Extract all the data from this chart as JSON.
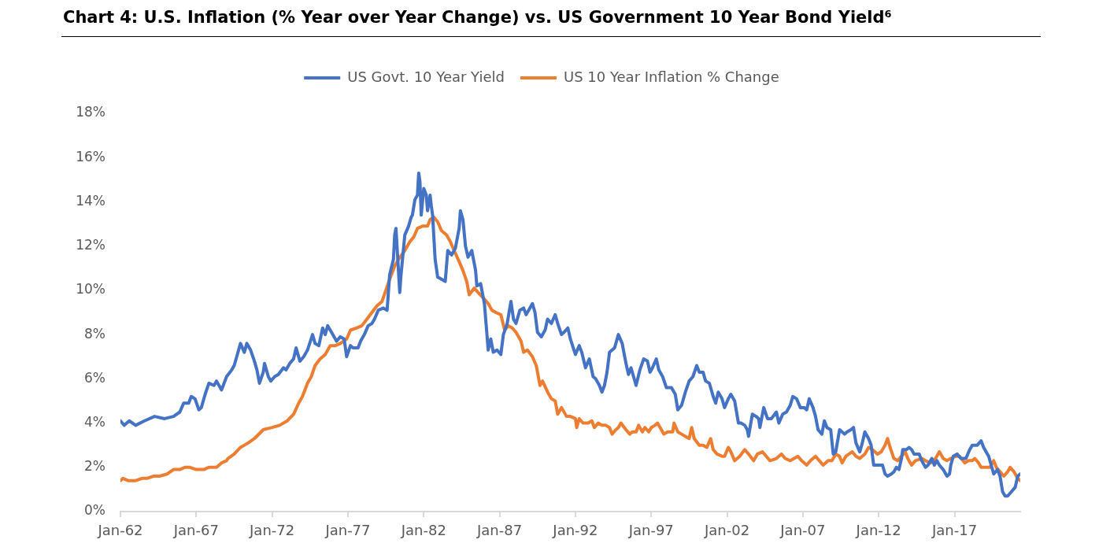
{
  "chart_data": {
    "type": "line",
    "title": "Chart 4: U.S. Inflation (% Year over Year Change) vs. US Government 10 Year Bond Yield⁶",
    "series": [
      {
        "name": "US Govt. 10 Year Yield",
        "color": "#4472c4",
        "x": [
          "1962-01",
          "1962-04",
          "1962-08",
          "1963-01",
          "1963-08",
          "1964-04",
          "1964-12",
          "1965-07",
          "1965-12",
          "1966-03",
          "1966-07",
          "1966-09",
          "1966-12",
          "1967-03",
          "1967-05",
          "1967-08",
          "1967-11",
          "1968-03",
          "1968-05",
          "1968-09",
          "1969-01",
          "1969-05",
          "1969-07",
          "1969-09",
          "1969-12",
          "1970-03",
          "1970-05",
          "1970-08",
          "1970-11",
          "1971-01",
          "1971-03",
          "1971-06",
          "1971-07",
          "1971-10",
          "1971-12",
          "1972-03",
          "1972-06",
          "1972-10",
          "1972-12",
          "1973-03",
          "1973-06",
          "1973-08",
          "1973-11",
          "1974-02",
          "1974-05",
          "1974-09",
          "1974-11",
          "1975-02",
          "1975-05",
          "1975-07",
          "1975-09",
          "1976-01",
          "1976-04",
          "1976-07",
          "1976-10",
          "1976-12",
          "1977-03",
          "1977-05",
          "1977-09",
          "1977-11",
          "1978-02",
          "1978-05",
          "1978-08",
          "1978-10",
          "1979-01",
          "1979-05",
          "1979-08",
          "1979-10",
          "1980-01",
          "1980-02",
          "1980-03",
          "1980-06",
          "1980-07",
          "1980-10",
          "1981-01",
          "1981-03",
          "1981-04",
          "1981-06",
          "1981-08",
          "1981-09",
          "1981-10",
          "1981-11",
          "1982-01",
          "1982-03",
          "1982-04",
          "1982-06",
          "1982-07",
          "1982-08",
          "1982-10",
          "1982-12",
          "1983-03",
          "1983-06",
          "1983-08",
          "1983-11",
          "1984-02",
          "1984-05",
          "1984-06",
          "1984-08",
          "1984-10",
          "1984-12",
          "1985-03",
          "1985-06",
          "1985-07",
          "1985-10",
          "1986-01",
          "1986-04",
          "1986-06",
          "1986-08",
          "1986-11",
          "1987-02",
          "1987-04",
          "1987-07",
          "1987-10",
          "1987-12",
          "1988-02",
          "1988-05",
          "1988-08",
          "1988-10",
          "1988-12",
          "1989-03",
          "1989-05",
          "1989-07",
          "1989-10",
          "1990-01",
          "1990-03",
          "1990-06",
          "1990-09",
          "1990-11",
          "1991-02",
          "1991-04",
          "1991-07",
          "1991-09",
          "1992-01",
          "1992-04",
          "1992-06",
          "1992-09",
          "1992-12",
          "1993-03",
          "1993-05",
          "1993-08",
          "1993-10",
          "1993-12",
          "1994-02",
          "1994-04",
          "1994-08",
          "1994-11",
          "1995-02",
          "1995-05",
          "1995-07",
          "1995-09",
          "1996-01",
          "1996-04",
          "1996-07",
          "1996-10",
          "1996-12",
          "1997-02",
          "1997-05",
          "1997-07",
          "1997-10",
          "1998-01",
          "1998-05",
          "1998-08",
          "1998-10",
          "1999-01",
          "1999-04",
          "1999-07",
          "1999-10",
          "2000-01",
          "2000-03",
          "2000-06",
          "2000-08",
          "2000-11",
          "2001-02",
          "2001-04",
          "2001-06",
          "2001-09",
          "2001-11",
          "2002-02",
          "2002-04",
          "2002-07",
          "2002-10",
          "2002-12",
          "2003-03",
          "2003-05",
          "2003-06",
          "2003-09",
          "2003-12",
          "2004-02",
          "2004-03",
          "2004-06",
          "2004-09",
          "2004-12",
          "2005-04",
          "2005-06",
          "2005-09",
          "2005-12",
          "2006-03",
          "2006-05",
          "2006-08",
          "2006-11",
          "2007-02",
          "2007-04",
          "2007-06",
          "2007-09",
          "2007-11",
          "2008-01",
          "2008-04",
          "2008-06",
          "2008-08",
          "2008-11",
          "2009-01",
          "2009-03",
          "2009-06",
          "2009-10",
          "2009-12",
          "2010-03",
          "2010-05",
          "2010-07",
          "2010-10",
          "2010-12",
          "2011-02",
          "2011-05",
          "2011-07",
          "2011-09",
          "2011-12",
          "2012-02",
          "2012-04",
          "2012-06",
          "2012-08",
          "2012-11",
          "2013-01",
          "2013-03",
          "2013-05",
          "2013-07",
          "2013-08",
          "2013-11",
          "2014-01",
          "2014-03",
          "2014-05",
          "2014-09",
          "2014-11",
          "2015-02",
          "2015-04",
          "2015-07",
          "2015-09",
          "2015-11",
          "2016-01",
          "2016-04",
          "2016-07",
          "2016-09",
          "2016-10",
          "2016-12",
          "2017-03",
          "2017-06",
          "2017-08",
          "2017-10",
          "2018-01",
          "2018-03",
          "2018-05",
          "2018-07",
          "2018-10",
          "2018-12",
          "2019-03",
          "2019-04",
          "2019-06",
          "2019-08",
          "2019-11",
          "2020-01",
          "2020-03",
          "2020-05",
          "2020-07",
          "2020-10",
          "2021-01",
          "2021-03",
          "2021-05"
        ],
        "values": [
          4.1,
          3.9,
          4.1,
          3.9,
          4.1,
          4.3,
          4.2,
          4.3,
          4.5,
          4.9,
          4.9,
          5.2,
          5.1,
          4.6,
          4.7,
          5.3,
          5.8,
          5.7,
          5.9,
          5.5,
          6.1,
          6.4,
          6.6,
          7.0,
          7.6,
          7.2,
          7.6,
          7.3,
          6.8,
          6.4,
          5.8,
          6.3,
          6.7,
          6.1,
          5.9,
          6.1,
          6.2,
          6.5,
          6.4,
          6.7,
          6.9,
          7.4,
          6.8,
          7.0,
          7.3,
          8.0,
          7.6,
          7.5,
          8.3,
          8.0,
          8.4,
          8.0,
          7.7,
          7.9,
          7.8,
          7.0,
          7.5,
          7.4,
          7.4,
          7.7,
          8.0,
          8.4,
          8.5,
          8.7,
          9.1,
          9.2,
          9.1,
          10.7,
          11.4,
          12.5,
          12.8,
          9.9,
          10.7,
          12.5,
          12.9,
          13.3,
          13.4,
          14.1,
          14.3,
          15.3,
          14.9,
          13.4,
          14.6,
          14.3,
          13.6,
          14.3,
          13.8,
          13.4,
          11.4,
          10.6,
          10.5,
          10.4,
          11.8,
          11.6,
          11.9,
          12.8,
          13.6,
          13.2,
          12.0,
          11.5,
          11.8,
          10.9,
          10.2,
          10.3,
          9.4,
          7.3,
          7.8,
          7.2,
          7.3,
          7.1,
          8.0,
          8.5,
          9.5,
          8.7,
          8.5,
          9.1,
          9.2,
          8.9,
          9.1,
          9.4,
          9.0,
          8.1,
          7.9,
          8.2,
          8.7,
          8.5,
          8.9,
          8.5,
          8.0,
          8.1,
          8.3,
          7.8,
          7.1,
          7.5,
          7.2,
          6.5,
          6.9,
          6.1,
          6.0,
          5.7,
          5.4,
          5.7,
          6.3,
          7.2,
          7.4,
          8.0,
          7.6,
          6.7,
          6.2,
          6.5,
          5.7,
          6.4,
          6.9,
          6.8,
          6.3,
          6.5,
          6.9,
          6.4,
          6.1,
          5.6,
          5.6,
          5.3,
          4.6,
          4.8,
          5.4,
          5.9,
          6.1,
          6.6,
          6.3,
          6.3,
          5.9,
          5.8,
          5.2,
          4.9,
          5.4,
          5.1,
          4.7,
          5.1,
          5.3,
          5.0,
          4.0,
          4.0,
          3.9,
          3.7,
          3.4,
          4.4,
          4.3,
          4.2,
          3.8,
          4.7,
          4.2,
          4.2,
          4.5,
          4.0,
          4.4,
          4.5,
          4.8,
          5.2,
          5.1,
          4.7,
          4.7,
          4.6,
          5.1,
          4.7,
          4.3,
          3.7,
          3.5,
          4.1,
          3.8,
          3.7,
          2.6,
          2.7,
          3.7,
          3.5,
          3.6,
          3.7,
          3.8,
          3.1,
          2.7,
          3.1,
          3.6,
          3.3,
          3.0,
          2.1,
          2.1,
          2.1,
          2.1,
          1.7,
          1.6,
          1.7,
          1.8,
          2.0,
          1.9,
          2.4,
          2.8,
          2.8,
          2.9,
          2.8,
          2.6,
          2.6,
          2.3,
          2.0,
          2.1,
          2.4,
          2.1,
          2.3,
          2.1,
          1.9,
          1.6,
          1.7,
          2.1,
          2.5,
          2.6,
          2.4,
          2.4,
          2.4,
          2.8,
          3.0,
          3.0,
          3.0,
          3.2,
          2.9,
          2.6,
          2.5,
          2.1,
          1.7,
          1.9,
          1.6,
          0.9,
          0.7,
          0.7,
          0.9,
          1.1,
          1.6,
          1.7
        ]
      },
      {
        "name": "US 10 Year Inflation % Change",
        "color": "#ed7d31",
        "x": [
          "1962-01",
          "1962-03",
          "1962-07",
          "1963-01",
          "1963-06",
          "1963-10",
          "1964-03",
          "1964-08",
          "1965-02",
          "1965-07",
          "1965-12",
          "1966-04",
          "1966-08",
          "1967-01",
          "1967-07",
          "1967-11",
          "1968-05",
          "1968-09",
          "1969-01",
          "1969-02",
          "1969-07",
          "1969-12",
          "1970-06",
          "1970-11",
          "1971-06",
          "1972-01",
          "1972-07",
          "1973-01",
          "1973-06",
          "1973-10",
          "1974-01",
          "1974-05",
          "1974-08",
          "1974-11",
          "1975-03",
          "1975-07",
          "1975-11",
          "1976-03",
          "1976-07",
          "1976-12",
          "1977-03",
          "1977-08",
          "1977-12",
          "1978-04",
          "1978-08",
          "1978-12",
          "1979-04",
          "1979-07",
          "1979-10",
          "1980-02",
          "1980-05",
          "1980-10",
          "1981-02",
          "1981-05",
          "1981-08",
          "1981-12",
          "1982-04",
          "1982-06",
          "1982-09",
          "1982-12",
          "1983-03",
          "1983-07",
          "1983-10",
          "1984-01",
          "1984-05",
          "1984-08",
          "1984-11",
          "1985-01",
          "1985-05",
          "1985-08",
          "1986-01",
          "1986-04",
          "1986-07",
          "1986-10",
          "1987-02",
          "1987-05",
          "1987-08",
          "1987-11",
          "1988-02",
          "1988-06",
          "1988-08",
          "1988-11",
          "1989-03",
          "1989-06",
          "1989-09",
          "1989-11",
          "1990-03",
          "1990-06",
          "1990-09",
          "1990-11",
          "1991-02",
          "1991-06",
          "1991-09",
          "1992-01",
          "1992-02",
          "1992-04",
          "1992-07",
          "1992-11",
          "1993-02",
          "1993-04",
          "1993-07",
          "1993-10",
          "1994-01",
          "1994-04",
          "1994-06",
          "1994-09",
          "1994-11",
          "1995-01",
          "1995-05",
          "1995-08",
          "1995-10",
          "1996-01",
          "1996-03",
          "1996-06",
          "1996-08",
          "1996-11",
          "1997-01",
          "1997-04",
          "1997-06",
          "1997-09",
          "1997-11",
          "1998-02",
          "1998-06",
          "1998-07",
          "1998-10",
          "1999-01",
          "1999-04",
          "1999-07",
          "1999-09",
          "1999-11",
          "2000-03",
          "2000-06",
          "2000-09",
          "2000-12",
          "2001-02",
          "2001-05",
          "2001-09",
          "2001-11",
          "2002-02",
          "2002-04",
          "2002-07",
          "2002-11",
          "2003-03",
          "2003-06",
          "2003-10",
          "2004-01",
          "2004-05",
          "2004-08",
          "2004-11",
          "2005-04",
          "2005-08",
          "2005-11",
          "2006-03",
          "2006-06",
          "2006-09",
          "2006-12",
          "2007-04",
          "2007-07",
          "2007-11",
          "2008-02",
          "2008-05",
          "2008-09",
          "2008-12",
          "2009-03",
          "2009-06",
          "2009-08",
          "2009-11",
          "2010-04",
          "2010-07",
          "2010-10",
          "2011-02",
          "2011-05",
          "2011-08",
          "2011-12",
          "2012-03",
          "2012-06",
          "2012-08",
          "2012-10",
          "2013-01",
          "2013-04",
          "2013-10",
          "2013-12",
          "2014-03",
          "2014-06",
          "2014-11",
          "2015-02",
          "2015-06",
          "2015-10",
          "2016-01",
          "2016-04",
          "2016-07",
          "2016-10",
          "2017-02",
          "2017-05",
          "2017-09",
          "2017-12",
          "2018-03",
          "2018-05",
          "2018-08",
          "2018-10",
          "2019-02",
          "2019-05",
          "2019-08",
          "2019-10",
          "2020-01",
          "2020-04",
          "2020-07",
          "2020-09",
          "2020-12",
          "2021-03",
          "2021-05"
        ],
        "values": [
          1.4,
          1.5,
          1.4,
          1.4,
          1.5,
          1.5,
          1.6,
          1.6,
          1.7,
          1.9,
          1.9,
          2.0,
          2.0,
          1.9,
          1.9,
          2.0,
          2.0,
          2.2,
          2.3,
          2.4,
          2.6,
          2.9,
          3.1,
          3.3,
          3.7,
          3.8,
          3.9,
          4.1,
          4.4,
          4.9,
          5.2,
          5.8,
          6.1,
          6.6,
          6.9,
          7.1,
          7.5,
          7.5,
          7.6,
          7.8,
          8.2,
          8.3,
          8.4,
          8.7,
          9.0,
          9.3,
          9.5,
          10.0,
          10.5,
          11.1,
          11.4,
          11.8,
          12.2,
          12.4,
          12.8,
          12.9,
          12.9,
          13.2,
          13.3,
          13.1,
          12.7,
          12.5,
          12.2,
          11.8,
          11.3,
          10.9,
          10.4,
          9.8,
          10.1,
          9.9,
          9.6,
          9.4,
          9.1,
          9.0,
          8.9,
          8.2,
          8.4,
          8.3,
          8.1,
          7.7,
          7.2,
          7.3,
          7.0,
          6.6,
          5.7,
          5.9,
          5.4,
          5.1,
          5.0,
          4.4,
          4.7,
          4.3,
          4.3,
          4.2,
          3.8,
          4.2,
          4.0,
          4.0,
          4.1,
          3.8,
          4.0,
          3.9,
          3.9,
          3.8,
          3.5,
          3.7,
          3.8,
          4.0,
          3.7,
          3.5,
          3.6,
          3.6,
          3.9,
          3.6,
          3.8,
          3.6,
          3.8,
          3.9,
          4.0,
          3.7,
          3.5,
          3.6,
          3.6,
          4.0,
          3.6,
          3.5,
          3.4,
          3.3,
          3.8,
          3.3,
          3.0,
          3.0,
          2.9,
          3.3,
          2.8,
          2.6,
          2.5,
          2.5,
          2.9,
          2.7,
          2.3,
          2.5,
          2.8,
          2.6,
          2.3,
          2.6,
          2.7,
          2.5,
          2.3,
          2.4,
          2.6,
          2.4,
          2.3,
          2.4,
          2.5,
          2.3,
          2.1,
          2.3,
          2.5,
          2.3,
          2.1,
          2.3,
          2.3,
          2.6,
          2.5,
          2.2,
          2.5,
          2.7,
          2.5,
          2.4,
          2.6,
          2.9,
          2.8,
          2.6,
          2.7,
          3.0,
          3.3,
          2.9,
          2.4,
          2.3,
          2.7,
          2.4,
          2.1,
          2.3,
          2.4,
          2.3,
          2.2,
          2.4,
          2.7,
          2.4,
          2.3,
          2.4,
          2.5,
          2.5,
          2.2,
          2.3,
          2.3,
          2.4,
          2.2,
          2.0,
          2.0,
          2.0,
          2.3,
          2.0,
          1.8,
          1.6,
          1.8,
          2.0,
          1.8,
          1.5,
          1.4
        ]
      }
    ],
    "xlim": [
      "1962-01",
      "2021-05"
    ],
    "xticks": [
      {
        "value": "1962-01",
        "label": "Jan-62"
      },
      {
        "value": "1967-01",
        "label": "Jan-67"
      },
      {
        "value": "1972-01",
        "label": "Jan-72"
      },
      {
        "value": "1977-01",
        "label": "Jan-77"
      },
      {
        "value": "1982-01",
        "label": "Jan-82"
      },
      {
        "value": "1987-01",
        "label": "Jan-87"
      },
      {
        "value": "1992-01",
        "label": "Jan-92"
      },
      {
        "value": "1997-01",
        "label": "Jan-97"
      },
      {
        "value": "2002-01",
        "label": "Jan-02"
      },
      {
        "value": "2007-01",
        "label": "Jan-07"
      },
      {
        "value": "2012-01",
        "label": "Jan-12"
      },
      {
        "value": "2017-01",
        "label": "Jan-17"
      }
    ],
    "ylim": [
      0,
      18
    ],
    "yticks": [
      {
        "value": 0,
        "label": "0%"
      },
      {
        "value": 2,
        "label": "2%"
      },
      {
        "value": 4,
        "label": "4%"
      },
      {
        "value": 6,
        "label": "6%"
      },
      {
        "value": 8,
        "label": "8%"
      },
      {
        "value": 10,
        "label": "10%"
      },
      {
        "value": 12,
        "label": "12%"
      },
      {
        "value": 14,
        "label": "14%"
      },
      {
        "value": 16,
        "label": "16%"
      },
      {
        "value": 18,
        "label": "18%"
      }
    ],
    "legend": "top",
    "grid": false,
    "marker": "none",
    "line_style": "solid"
  }
}
